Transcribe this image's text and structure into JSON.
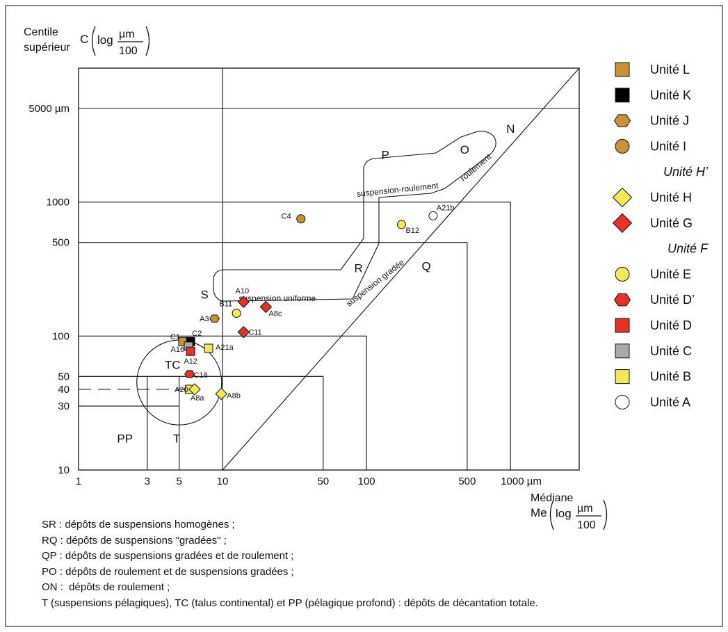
{
  "chart_data": {
    "type": "scatter",
    "x_scale": "log",
    "y_scale": "log",
    "xlim": [
      1,
      3000
    ],
    "ylim": [
      10,
      10000
    ],
    "x_ticks": [
      {
        "value": 1,
        "label": "1"
      },
      {
        "value": 3,
        "label": "3"
      },
      {
        "value": 5,
        "label": "5"
      },
      {
        "value": 10,
        "label": "10"
      },
      {
        "value": 50,
        "label": "50"
      },
      {
        "value": 100,
        "label": "100"
      },
      {
        "value": 500,
        "label": "500"
      },
      {
        "value": 1000,
        "label": "1000 µm"
      }
    ],
    "y_ticks": [
      {
        "value": 10,
        "label": "10"
      },
      {
        "value": 30,
        "label": "30"
      },
      {
        "value": 40,
        "label": "40"
      },
      {
        "value": 50,
        "label": "50"
      },
      {
        "value": 100,
        "label": "100"
      },
      {
        "value": 500,
        "label": "500"
      },
      {
        "value": 1000,
        "label": "1000"
      },
      {
        "value": 5000,
        "label": "5000 µm"
      }
    ],
    "ylabel_line1": "Centile",
    "ylabel_line2": "supérieur",
    "ylabel_unit_letter": "C",
    "xlabel_line1": "Médiane",
    "xlabel_unit_letter": "Me",
    "unit_log": "log",
    "unit_num": "µm",
    "unit_den": "100",
    "region_letters": [
      {
        "text": "N",
        "x": 1000,
        "y": 3300
      },
      {
        "text": "O",
        "x": 480,
        "y": 2300
      },
      {
        "text": "P",
        "x": 135,
        "y": 2100
      },
      {
        "text": "R",
        "x": 88,
        "y": 300
      },
      {
        "text": "Q",
        "x": 260,
        "y": 310
      },
      {
        "text": "S",
        "x": 7.5,
        "y": 190
      },
      {
        "text": "TC",
        "x": 4.5,
        "y": 57
      },
      {
        "text": "T",
        "x": 4.8,
        "y": 16
      },
      {
        "text": "PP",
        "x": 2.1,
        "y": 16
      }
    ],
    "band_labels": [
      {
        "text": "suspension uniforme",
        "x": 24,
        "y": 183,
        "angle": 0
      },
      {
        "text": "suspension gradée",
        "x": 118,
        "y": 240,
        "angle": -38
      },
      {
        "text": "suspension-roulement",
        "x": 165,
        "y": 1180,
        "angle": -6
      },
      {
        "text": "roulement",
        "x": 590,
        "y": 1750,
        "angle": -40
      }
    ],
    "points": [
      {
        "label": "C4",
        "unit": "I",
        "x": 35,
        "y": 750
      },
      {
        "label": "B12",
        "unit": "E",
        "x": 175,
        "y": 680
      },
      {
        "label": "A21b",
        "unit": "A",
        "x": 290,
        "y": 790
      },
      {
        "label": "A10",
        "unit": "G",
        "x": 14,
        "y": 180
      },
      {
        "label": "A8c",
        "unit": "G",
        "x": 20,
        "y": 165
      },
      {
        "label": "B11",
        "unit": "E",
        "x": 12.5,
        "y": 148
      },
      {
        "label": "A3",
        "unit": "J",
        "x": 8.8,
        "y": 135
      },
      {
        "label": "C11",
        "unit": "G",
        "x": 14,
        "y": 107
      },
      {
        "label": "C1",
        "unit": "L",
        "x": 5.3,
        "y": 91
      },
      {
        "label": "C2",
        "unit": "K",
        "x": 6.0,
        "y": 91
      },
      {
        "label": "A16",
        "unit": "C",
        "x": 5.8,
        "y": 84
      },
      {
        "label": "A12",
        "unit": "D",
        "x": 6.0,
        "y": 77
      },
      {
        "label": "A21a",
        "unit": "B",
        "x": 8.0,
        "y": 81
      },
      {
        "label": "C18",
        "unit": "D'",
        "x": 5.9,
        "y": 52
      },
      {
        "label": "A20",
        "unit": "B",
        "x": 5.9,
        "y": 40
      },
      {
        "label": "A8a",
        "unit": "H",
        "x": 6.4,
        "y": 40
      },
      {
        "label": "A8b",
        "unit": "H",
        "x": 9.8,
        "y": 37
      }
    ]
  },
  "legend": [
    {
      "label": "Unité L",
      "shape": "square",
      "color": "#c8913a",
      "italic": false
    },
    {
      "label": "Unité K",
      "shape": "square",
      "color": "#000000",
      "italic": false
    },
    {
      "label": "Unité J",
      "shape": "hexagon",
      "color": "#c8913a",
      "italic": false
    },
    {
      "label": "Unité I",
      "shape": "circle",
      "color": "#c8913a",
      "italic": false
    },
    {
      "label": "Unité H’",
      "shape": "none",
      "color": "",
      "italic": true
    },
    {
      "label": "Unité H",
      "shape": "diamond",
      "color": "#f2e85a",
      "italic": false
    },
    {
      "label": "Unité G",
      "shape": "diamond",
      "color": "#e2322a",
      "italic": false
    },
    {
      "label": "Unité F",
      "shape": "none",
      "color": "",
      "italic": true
    },
    {
      "label": "Unité E",
      "shape": "circle",
      "color": "#f2e85a",
      "italic": false
    },
    {
      "label": "Unité D’",
      "shape": "hexagon",
      "color": "#e2322a",
      "italic": false
    },
    {
      "label": "Unité D",
      "shape": "square",
      "color": "#e2322a",
      "italic": false
    },
    {
      "label": "Unité C",
      "shape": "square",
      "color": "#a9a9ab",
      "italic": false
    },
    {
      "label": "Unité B",
      "shape": "square",
      "color": "#f2e85a",
      "italic": false
    },
    {
      "label": "Unité A",
      "shape": "circle",
      "color": "#ffffff",
      "italic": false
    }
  ],
  "unit_styles": {
    "L": {
      "shape": "square",
      "color": "#c8913a"
    },
    "K": {
      "shape": "square",
      "color": "#000000"
    },
    "J": {
      "shape": "hexagon",
      "color": "#c8913a"
    },
    "I": {
      "shape": "circle",
      "color": "#c8913a"
    },
    "H": {
      "shape": "diamond",
      "color": "#f2e85a"
    },
    "G": {
      "shape": "diamond",
      "color": "#e2322a"
    },
    "E": {
      "shape": "circle",
      "color": "#f2e85a"
    },
    "D'": {
      "shape": "hexagon",
      "color": "#e2322a"
    },
    "D": {
      "shape": "square",
      "color": "#e2322a"
    },
    "C": {
      "shape": "square",
      "color": "#a9a9ab"
    },
    "B": {
      "shape": "square",
      "color": "#f2e85a"
    },
    "A": {
      "shape": "circle",
      "color": "#ffffff"
    }
  },
  "notes": [
    "SR : dépôts de suspensions homogènes ;",
    "RQ : dépôts de suspensions \"gradées\" ;",
    "QP : dépôts de suspensions gradées et de roulement ;",
    "PO : dépôts de roulement et de suspensions gradées ;",
    "ON :  dépôts de roulement ;",
    "T (suspensions pélagiques), TC (talus continental) et PP (pélagique profond) : dépôts de décantation totale."
  ]
}
